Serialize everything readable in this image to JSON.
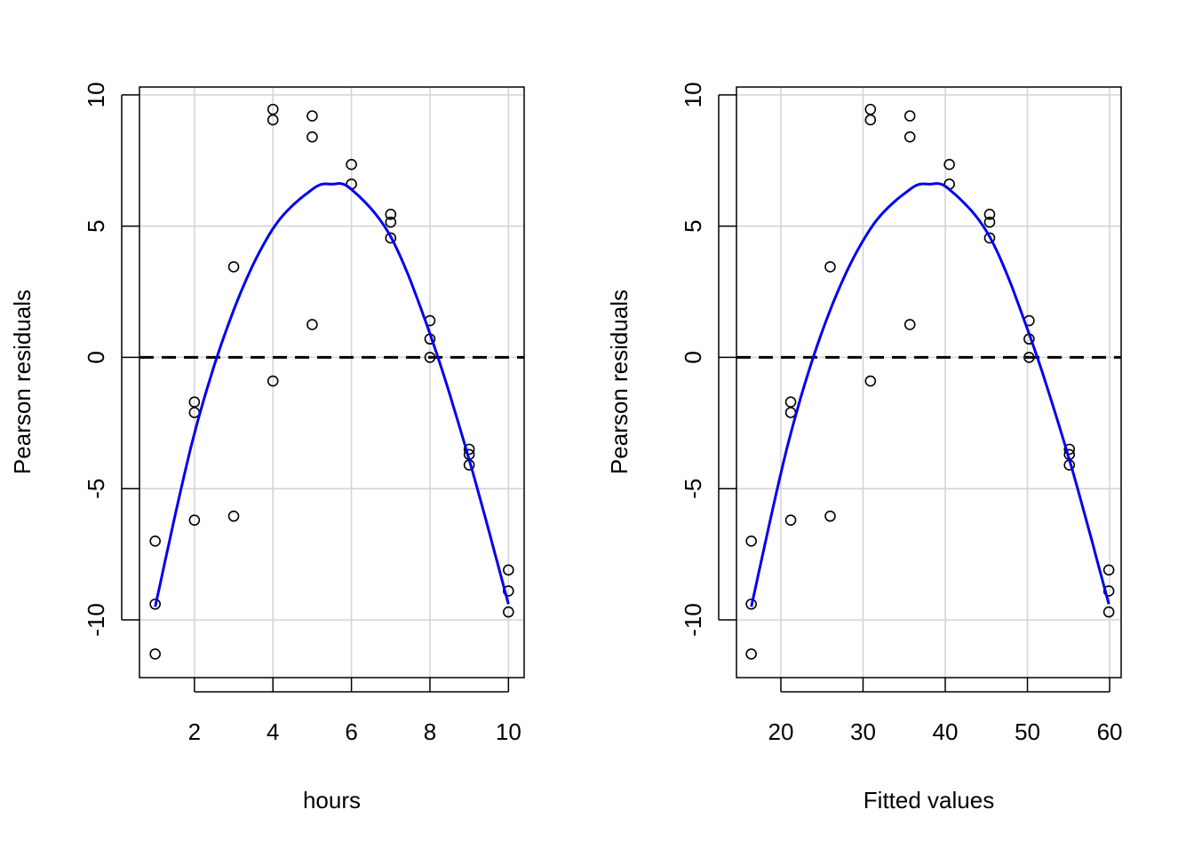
{
  "chart_data": [
    {
      "type": "scatter",
      "xlabel": "hours",
      "ylabel": "Pearson residuals",
      "xlim": [
        0.6,
        10.4
      ],
      "ylim": [
        -12.2,
        10.3
      ],
      "xticks": [
        2,
        4,
        6,
        8,
        10
      ],
      "yticks": [
        -10,
        -5,
        0,
        5,
        10
      ],
      "grid": true,
      "reference_line": 0,
      "reference_line_style": "dashed",
      "points": [
        [
          1,
          -7.0
        ],
        [
          1,
          -9.4
        ],
        [
          1,
          -11.3
        ],
        [
          2,
          -1.7
        ],
        [
          2,
          -2.1
        ],
        [
          2,
          -6.2
        ],
        [
          3,
          3.45
        ],
        [
          3,
          -6.05
        ],
        [
          4,
          9.45
        ],
        [
          4,
          9.05
        ],
        [
          4,
          -0.9
        ],
        [
          5,
          9.2
        ],
        [
          5,
          8.4
        ],
        [
          5,
          1.25
        ],
        [
          6,
          7.35
        ],
        [
          6,
          6.6
        ],
        [
          7,
          5.45
        ],
        [
          7,
          5.15
        ],
        [
          7,
          4.55
        ],
        [
          8,
          1.4
        ],
        [
          8,
          0.7
        ],
        [
          8,
          0.0
        ],
        [
          9,
          -3.5
        ],
        [
          9,
          -3.7
        ],
        [
          9,
          -4.1
        ],
        [
          10,
          -8.1
        ],
        [
          10,
          -8.9
        ],
        [
          10,
          -9.7
        ]
      ],
      "smooth_curve": {
        "color": "#0000ee",
        "x": [
          1,
          2,
          3,
          4,
          5,
          5.5,
          6,
          7,
          8,
          9,
          10
        ],
        "y": [
          -9.5,
          -2.9,
          1.8,
          4.9,
          6.4,
          6.6,
          6.4,
          4.6,
          0.9,
          -3.9,
          -9.4
        ]
      }
    },
    {
      "type": "scatter",
      "xlabel": "Fitted values",
      "ylabel": "Pearson residuals",
      "xlim": [
        14.6,
        61.4
      ],
      "ylim": [
        -12.2,
        10.3
      ],
      "xticks": [
        20,
        30,
        40,
        50,
        60
      ],
      "yticks": [
        -10,
        -5,
        0,
        5,
        10
      ],
      "grid": true,
      "reference_line": 0,
      "reference_line_style": "dashed",
      "points": [
        [
          16.4,
          -7.0
        ],
        [
          16.4,
          -9.4
        ],
        [
          16.4,
          -11.3
        ],
        [
          21.2,
          -1.7
        ],
        [
          21.2,
          -2.1
        ],
        [
          21.2,
          -6.2
        ],
        [
          26.0,
          3.45
        ],
        [
          26.0,
          -6.05
        ],
        [
          30.9,
          9.45
        ],
        [
          30.9,
          9.05
        ],
        [
          30.9,
          -0.9
        ],
        [
          35.7,
          9.2
        ],
        [
          35.7,
          8.4
        ],
        [
          35.7,
          1.25
        ],
        [
          40.5,
          7.35
        ],
        [
          40.5,
          6.6
        ],
        [
          45.4,
          5.45
        ],
        [
          45.4,
          5.15
        ],
        [
          45.4,
          4.55
        ],
        [
          50.2,
          1.4
        ],
        [
          50.2,
          0.7
        ],
        [
          50.2,
          0.0
        ],
        [
          55.1,
          -3.5
        ],
        [
          55.1,
          -3.7
        ],
        [
          55.1,
          -4.1
        ],
        [
          59.9,
          -8.1
        ],
        [
          59.9,
          -8.9
        ],
        [
          59.9,
          -9.7
        ]
      ],
      "smooth_curve": {
        "color": "#0000ee",
        "x": [
          16.4,
          21.2,
          26.0,
          30.9,
          35.7,
          38.1,
          40.5,
          45.4,
          50.2,
          55.1,
          59.9
        ],
        "y": [
          -9.5,
          -2.9,
          1.8,
          4.9,
          6.4,
          6.6,
          6.4,
          4.6,
          0.9,
          -3.9,
          -9.4
        ]
      }
    }
  ]
}
